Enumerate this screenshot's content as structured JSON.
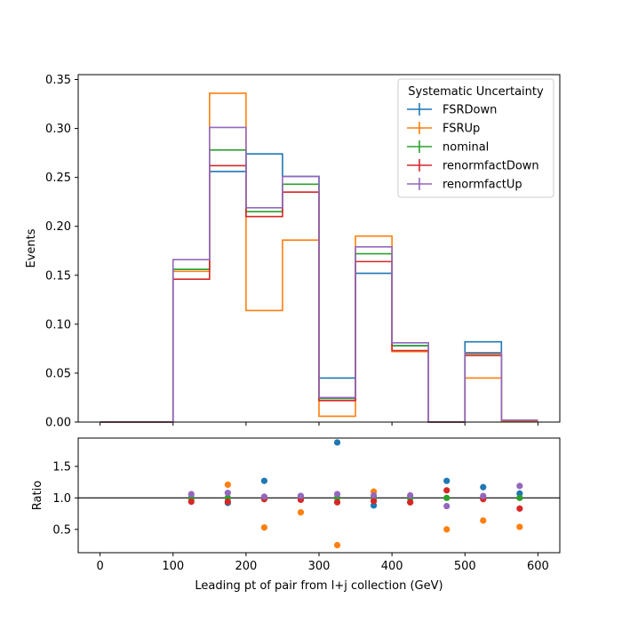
{
  "chart_data": [
    {
      "type": "histogram",
      "ylabel": "Events",
      "xlim": [
        -30,
        630
      ],
      "ylim": [
        0,
        0.355
      ],
      "yticks": [
        "0.00",
        "0.05",
        "0.10",
        "0.15",
        "0.20",
        "0.25",
        "0.30",
        "0.35"
      ],
      "bin_edges": [
        0,
        50,
        100,
        150,
        200,
        250,
        300,
        350,
        400,
        450,
        500,
        550,
        600
      ],
      "legend": {
        "title": "Systematic Uncertainty",
        "position": "upper right"
      },
      "series": [
        {
          "name": "FSRDown",
          "color": "#1f77b4",
          "values": [
            0,
            0,
            0.156,
            0.256,
            0.274,
            0.251,
            0.045,
            0.152,
            0.078,
            0,
            0.082,
            0.002
          ]
        },
        {
          "name": "FSRUp",
          "color": "#ff7f0e",
          "values": [
            0,
            0,
            0.154,
            0.336,
            0.114,
            0.186,
            0.006,
            0.19,
            0.072,
            0,
            0.045,
            0.001
          ]
        },
        {
          "name": "nominal",
          "color": "#2ca02c",
          "values": [
            0,
            0,
            0.156,
            0.278,
            0.215,
            0.243,
            0.024,
            0.172,
            0.078,
            0,
            0.07,
            0.002
          ]
        },
        {
          "name": "renormfactDown",
          "color": "#d62728",
          "values": [
            0,
            0,
            0.146,
            0.262,
            0.21,
            0.235,
            0.022,
            0.164,
            0.073,
            0,
            0.068,
            0.002
          ]
        },
        {
          "name": "renormfactUp",
          "color": "#9467bd",
          "values": [
            0,
            0,
            0.166,
            0.301,
            0.219,
            0.251,
            0.025,
            0.179,
            0.081,
            0,
            0.071,
            0.002
          ]
        }
      ]
    },
    {
      "type": "scatter",
      "xlabel": "Leading pt of pair from l+j collection (GeV)",
      "ylabel": "Ratio",
      "xlim": [
        -30,
        630
      ],
      "ylim": [
        0.13,
        1.95
      ],
      "xticks": [
        "0",
        "100",
        "200",
        "300",
        "400",
        "500",
        "600"
      ],
      "yticks": [
        "0.5",
        "1.0",
        "1.5"
      ],
      "reference_line": 1.0,
      "x": [
        125,
        175,
        225,
        275,
        325,
        375,
        425,
        475,
        525,
        575
      ],
      "series": [
        {
          "name": "FSRDown",
          "color": "#1f77b4",
          "values": [
            1.0,
            0.92,
            1.27,
            1.03,
            1.88,
            0.88,
            1.0,
            1.27,
            1.17,
            1.07
          ]
        },
        {
          "name": "FSRUp",
          "color": "#ff7f0e",
          "values": [
            0.99,
            1.21,
            0.53,
            0.77,
            0.25,
            1.1,
            0.93,
            0.5,
            0.64,
            0.54
          ]
        },
        {
          "name": "nominal",
          "color": "#2ca02c",
          "values": [
            1.0,
            1.0,
            1.0,
            1.0,
            1.0,
            1.0,
            1.0,
            1.0,
            1.0,
            1.0
          ]
        },
        {
          "name": "renormfactDown",
          "color": "#d62728",
          "values": [
            0.94,
            0.94,
            0.98,
            0.97,
            0.93,
            0.95,
            0.93,
            1.12,
            0.98,
            0.83
          ]
        },
        {
          "name": "renormfactUp",
          "color": "#9467bd",
          "values": [
            1.06,
            1.08,
            1.02,
            1.03,
            1.06,
            1.04,
            1.04,
            0.87,
            1.03,
            1.19
          ]
        }
      ]
    }
  ]
}
